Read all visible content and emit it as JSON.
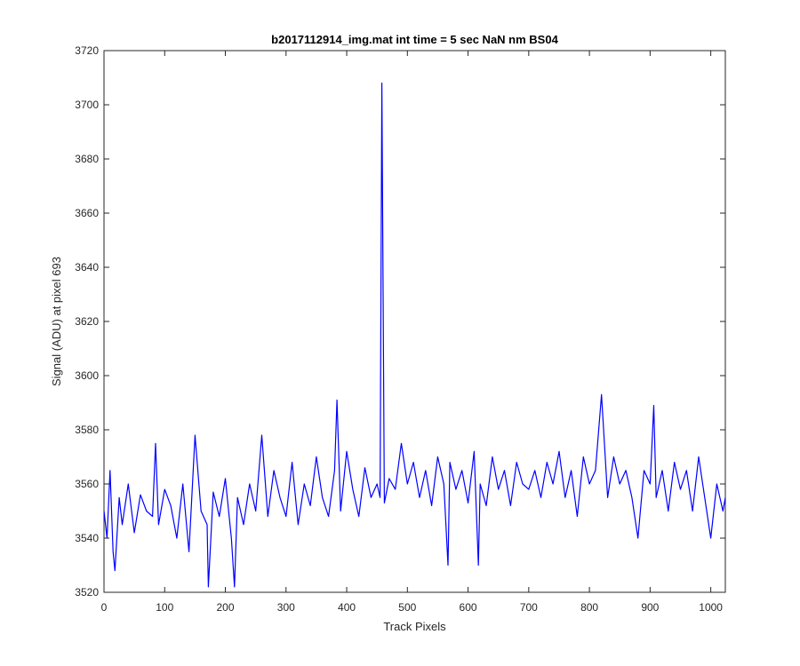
{
  "chart_data": {
    "type": "line",
    "title": "b2017112914_img.mat int time = 5 sec  NaN nm BS04",
    "xlabel": "Track Pixels",
    "ylabel": "Signal (ADU) at pixel 693",
    "xlim": [
      0,
      1024
    ],
    "ylim": [
      3520,
      3720
    ],
    "xticks": [
      0,
      100,
      200,
      300,
      400,
      500,
      600,
      700,
      800,
      900,
      1000
    ],
    "yticks": [
      3520,
      3540,
      3560,
      3580,
      3600,
      3620,
      3640,
      3660,
      3680,
      3700,
      3720
    ],
    "grid": false,
    "line_color": "#0000ff",
    "series": [
      {
        "x": [
          0,
          5,
          10,
          15,
          18,
          25,
          30,
          40,
          50,
          60,
          70,
          80,
          85,
          90,
          100,
          110,
          120,
          130,
          140,
          150,
          160,
          170,
          172,
          180,
          190,
          200,
          210,
          215,
          220,
          230,
          240,
          250,
          260,
          270,
          280,
          290,
          300,
          310,
          320,
          330,
          340,
          350,
          360,
          370,
          380,
          384,
          390,
          400,
          410,
          420,
          430,
          440,
          450,
          455,
          458,
          462,
          470,
          480,
          490,
          500,
          510,
          520,
          530,
          540,
          550,
          560,
          567,
          570,
          580,
          590,
          600,
          610,
          617,
          620,
          630,
          640,
          650,
          660,
          670,
          680,
          690,
          700,
          710,
          720,
          730,
          740,
          750,
          760,
          770,
          780,
          790,
          800,
          810,
          820,
          830,
          840,
          850,
          860,
          870,
          880,
          890,
          900,
          906,
          910,
          920,
          930,
          940,
          950,
          960,
          970,
          980,
          990,
          1000,
          1010,
          1020,
          1024
        ],
        "y": [
          3550,
          3540,
          3565,
          3535,
          3528,
          3555,
          3545,
          3560,
          3542,
          3556,
          3550,
          3548,
          3575,
          3545,
          3558,
          3552,
          3540,
          3560,
          3535,
          3578,
          3550,
          3545,
          3522,
          3557,
          3548,
          3562,
          3540,
          3522,
          3555,
          3545,
          3560,
          3550,
          3578,
          3548,
          3565,
          3555,
          3548,
          3568,
          3545,
          3560,
          3552,
          3570,
          3555,
          3548,
          3565,
          3591,
          3550,
          3572,
          3558,
          3548,
          3566,
          3555,
          3560,
          3555,
          3708,
          3553,
          3562,
          3558,
          3575,
          3560,
          3568,
          3555,
          3565,
          3552,
          3570,
          3560,
          3530,
          3568,
          3558,
          3565,
          3553,
          3572,
          3530,
          3560,
          3552,
          3570,
          3558,
          3565,
          3552,
          3568,
          3560,
          3558,
          3565,
          3555,
          3568,
          3560,
          3572,
          3555,
          3565,
          3548,
          3570,
          3560,
          3565,
          3593,
          3555,
          3570,
          3560,
          3565,
          3555,
          3540,
          3565,
          3560,
          3589,
          3555,
          3565,
          3550,
          3568,
          3558,
          3565,
          3550,
          3570,
          3555,
          3540,
          3560,
          3550,
          3555
        ]
      }
    ]
  }
}
